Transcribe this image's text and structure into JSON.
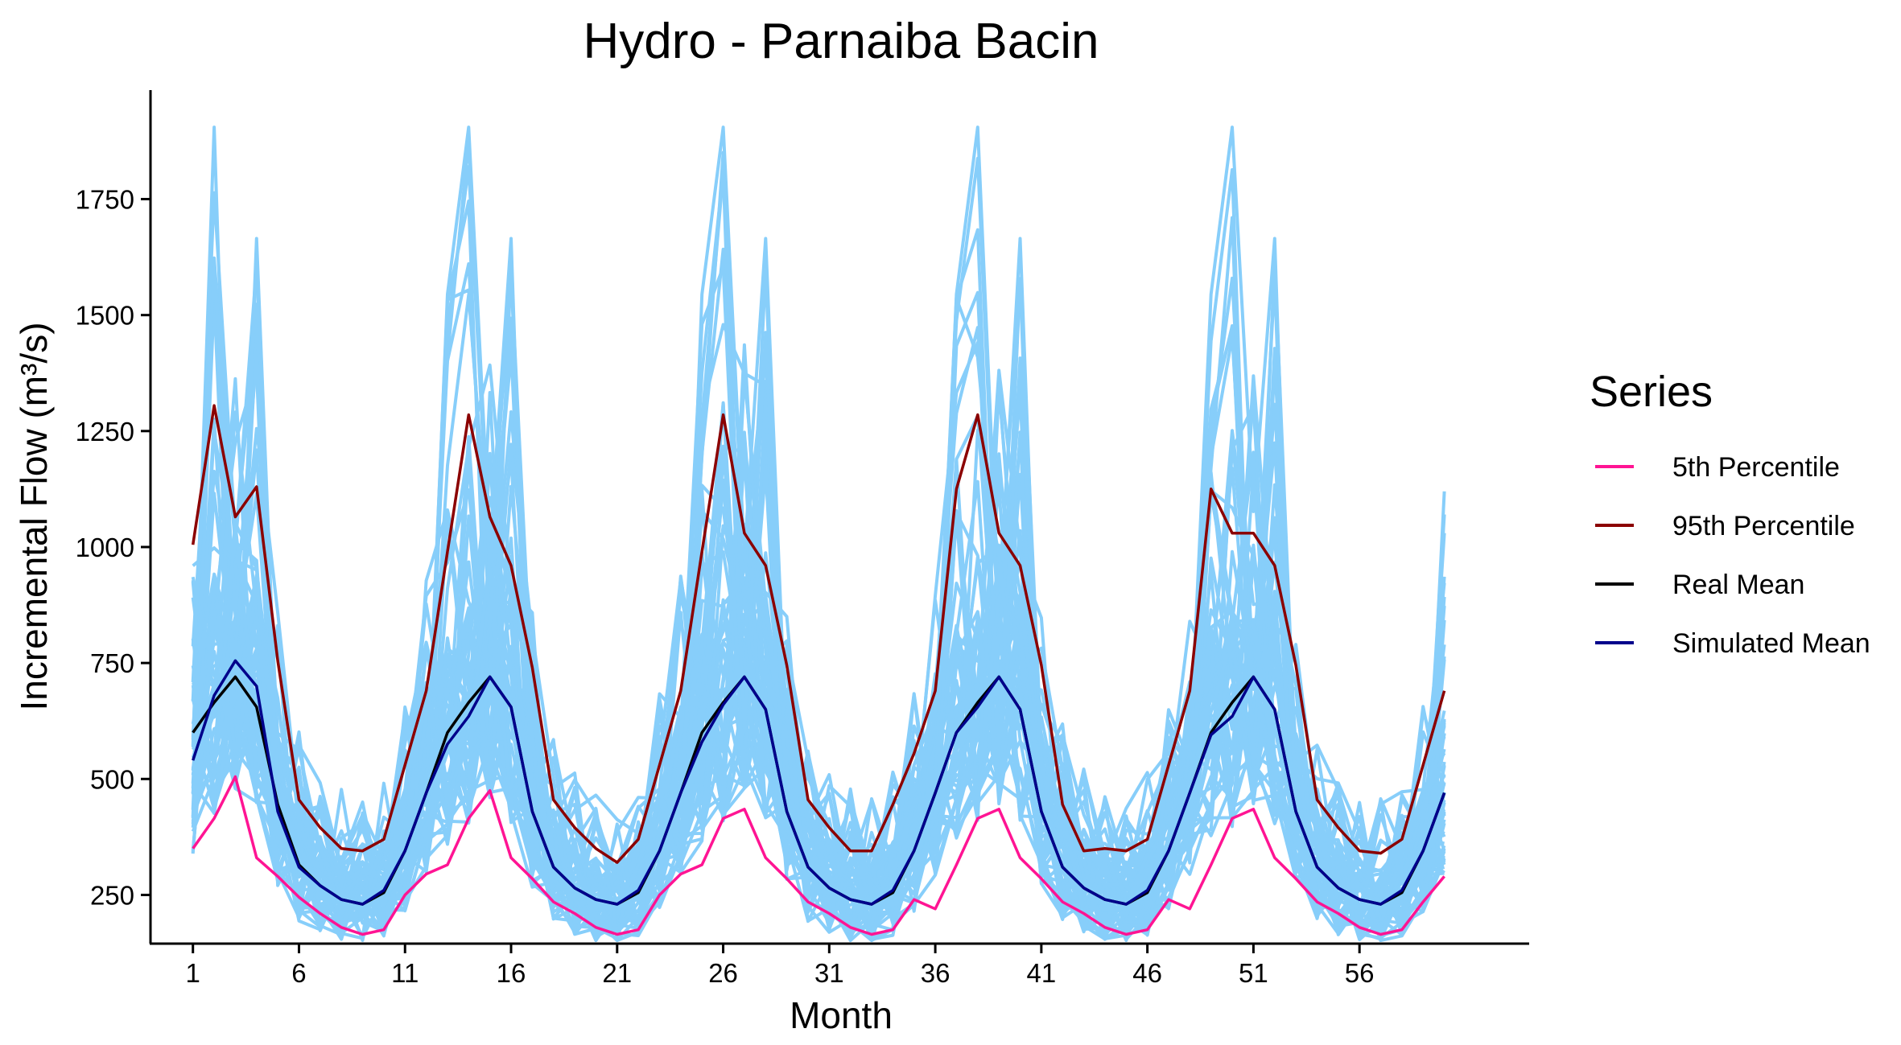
{
  "chart_data": {
    "type": "line",
    "title": "Hydro - Parnaiba Bacin",
    "xlabel": "Month",
    "ylabel": "Incremental Flow (m³/s)",
    "xlim": [
      -1,
      64
    ],
    "ylim": [
      145,
      1985
    ],
    "x_ticks": [
      1,
      6,
      11,
      16,
      21,
      26,
      31,
      36,
      41,
      46,
      51,
      56
    ],
    "y_ticks": [
      250,
      500,
      750,
      1000,
      1250,
      1500,
      1750
    ],
    "grid": false,
    "legend_position": "right",
    "legend_title": "Series",
    "simulated_scenarios": {
      "color": "#87CEFA",
      "count": 60,
      "spikes": [
        {
          "x": 2,
          "y": 1905
        },
        {
          "x": 4,
          "y": 1665
        },
        {
          "x": 13,
          "y": 1545
        },
        {
          "x": 14,
          "y": 1905
        },
        {
          "x": 16,
          "y": 1665
        },
        {
          "x": 25,
          "y": 1545
        },
        {
          "x": 26,
          "y": 1905
        },
        {
          "x": 28,
          "y": 1665
        },
        {
          "x": 37,
          "y": 1545
        },
        {
          "x": 38,
          "y": 1905
        },
        {
          "x": 40,
          "y": 1665
        },
        {
          "x": 49,
          "y": 1545
        },
        {
          "x": 50,
          "y": 1905
        },
        {
          "x": 52,
          "y": 1665
        },
        {
          "x": 60,
          "y": 1120
        }
      ]
    },
    "series": [
      {
        "name": "5th Percentile",
        "color": "#FF1493",
        "x": [
          1,
          2,
          3,
          4,
          5,
          6,
          7,
          8,
          9,
          10,
          11,
          12,
          13,
          14,
          15,
          16,
          17,
          18,
          19,
          20,
          21,
          22,
          23,
          24,
          25,
          26,
          27,
          28,
          29,
          30,
          31,
          32,
          33,
          34,
          35,
          36,
          37,
          38,
          39,
          40,
          41,
          42,
          43,
          44,
          45,
          46,
          47,
          48,
          49,
          50,
          51,
          52,
          53,
          54,
          55,
          56,
          57,
          58,
          59,
          60
        ],
        "values": [
          350,
          415,
          505,
          330,
          290,
          245,
          210,
          180,
          165,
          175,
          250,
          295,
          315,
          415,
          475,
          330,
          285,
          235,
          210,
          180,
          165,
          175,
          250,
          295,
          315,
          415,
          435,
          330,
          285,
          235,
          210,
          180,
          165,
          175,
          240,
          220,
          315,
          415,
          435,
          330,
          285,
          235,
          210,
          180,
          165,
          175,
          240,
          220,
          315,
          415,
          435,
          330,
          285,
          235,
          210,
          180,
          165,
          175,
          235,
          290
        ]
      },
      {
        "name": "95th Percentile",
        "color": "#8B0000",
        "x": [
          1,
          2,
          3,
          4,
          5,
          6,
          7,
          8,
          9,
          10,
          11,
          12,
          13,
          14,
          15,
          16,
          17,
          18,
          19,
          20,
          21,
          22,
          23,
          24,
          25,
          26,
          27,
          28,
          29,
          30,
          31,
          32,
          33,
          34,
          35,
          36,
          37,
          38,
          39,
          40,
          41,
          42,
          43,
          44,
          45,
          46,
          47,
          48,
          49,
          50,
          51,
          52,
          53,
          54,
          55,
          56,
          57,
          58,
          59,
          60
        ],
        "values": [
          1005,
          1305,
          1065,
          1130,
          755,
          455,
          395,
          350,
          345,
          370,
          530,
          690,
          990,
          1285,
          1065,
          960,
          740,
          455,
          395,
          350,
          320,
          370,
          530,
          690,
          990,
          1285,
          1030,
          960,
          745,
          455,
          395,
          345,
          345,
          445,
          555,
          690,
          1125,
          1285,
          1030,
          960,
          745,
          445,
          345,
          350,
          345,
          370,
          530,
          690,
          1125,
          1030,
          1030,
          960,
          745,
          455,
          395,
          345,
          340,
          370,
          530,
          690
        ]
      },
      {
        "name": "Real Mean",
        "color": "#000000",
        "x": [
          1,
          2,
          3,
          4,
          5,
          6,
          7,
          8,
          9,
          10,
          11,
          12,
          13,
          14,
          15,
          16,
          17,
          18,
          19,
          20,
          21,
          22,
          23,
          24,
          25,
          26,
          27,
          28,
          29,
          30,
          31,
          32,
          33,
          34,
          35,
          36,
          37,
          38,
          39,
          40,
          41,
          42,
          43,
          44,
          45,
          46,
          47,
          48,
          49,
          50,
          51,
          52,
          53,
          54,
          55,
          56,
          57,
          58,
          59,
          60
        ],
        "values": [
          600,
          665,
          720,
          655,
          445,
          315,
          270,
          240,
          230,
          255,
          345,
          470,
          600,
          665,
          720,
          655,
          430,
          310,
          265,
          240,
          230,
          255,
          345,
          470,
          600,
          665,
          720,
          650,
          430,
          310,
          265,
          240,
          230,
          255,
          345,
          470,
          600,
          665,
          720,
          650,
          430,
          310,
          265,
          240,
          230,
          255,
          345,
          470,
          600,
          665,
          720,
          650,
          430,
          310,
          265,
          240,
          230,
          255,
          345,
          470
        ]
      },
      {
        "name": "Simulated Mean",
        "color": "#00008B",
        "x": [
          1,
          2,
          3,
          4,
          5,
          6,
          7,
          8,
          9,
          10,
          11,
          12,
          13,
          14,
          15,
          16,
          17,
          18,
          19,
          20,
          21,
          22,
          23,
          24,
          25,
          26,
          27,
          28,
          29,
          30,
          31,
          32,
          33,
          34,
          35,
          36,
          37,
          38,
          39,
          40,
          41,
          42,
          43,
          44,
          45,
          46,
          47,
          48,
          49,
          50,
          51,
          52,
          53,
          54,
          55,
          56,
          57,
          58,
          59,
          60
        ],
        "values": [
          540,
          680,
          755,
          700,
          430,
          310,
          270,
          240,
          230,
          260,
          345,
          470,
          575,
          635,
          720,
          655,
          430,
          310,
          265,
          240,
          230,
          260,
          345,
          470,
          580,
          660,
          720,
          650,
          430,
          310,
          265,
          240,
          230,
          260,
          345,
          470,
          600,
          655,
          720,
          650,
          430,
          310,
          265,
          240,
          230,
          260,
          345,
          470,
          595,
          635,
          720,
          650,
          430,
          310,
          265,
          240,
          230,
          260,
          345,
          470
        ]
      }
    ]
  }
}
